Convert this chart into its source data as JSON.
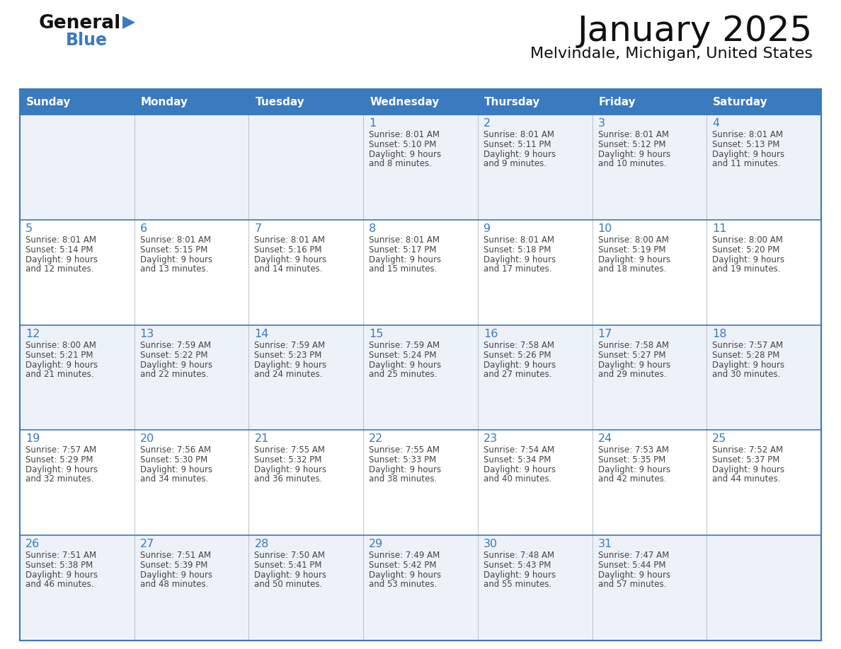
{
  "title": "January 2025",
  "subtitle": "Melvindale, Michigan, United States",
  "days_of_week": [
    "Sunday",
    "Monday",
    "Tuesday",
    "Wednesday",
    "Thursday",
    "Friday",
    "Saturday"
  ],
  "header_bg": "#3a7abf",
  "header_text": "#ffffff",
  "row_bg_odd": "#edf2f8",
  "row_bg_even": "#ffffff",
  "border_color": "#3a7abf",
  "day_number_color": "#3a7abf",
  "cell_text_color": "#444444",
  "calendar_data": [
    [
      null,
      null,
      null,
      {
        "day": 1,
        "sunrise": "8:01 AM",
        "sunset": "5:10 PM",
        "daylight": "9 hours and 8 minutes."
      },
      {
        "day": 2,
        "sunrise": "8:01 AM",
        "sunset": "5:11 PM",
        "daylight": "9 hours and 9 minutes."
      },
      {
        "day": 3,
        "sunrise": "8:01 AM",
        "sunset": "5:12 PM",
        "daylight": "9 hours and 10 minutes."
      },
      {
        "day": 4,
        "sunrise": "8:01 AM",
        "sunset": "5:13 PM",
        "daylight": "9 hours and 11 minutes."
      }
    ],
    [
      {
        "day": 5,
        "sunrise": "8:01 AM",
        "sunset": "5:14 PM",
        "daylight": "9 hours and 12 minutes."
      },
      {
        "day": 6,
        "sunrise": "8:01 AM",
        "sunset": "5:15 PM",
        "daylight": "9 hours and 13 minutes."
      },
      {
        "day": 7,
        "sunrise": "8:01 AM",
        "sunset": "5:16 PM",
        "daylight": "9 hours and 14 minutes."
      },
      {
        "day": 8,
        "sunrise": "8:01 AM",
        "sunset": "5:17 PM",
        "daylight": "9 hours and 15 minutes."
      },
      {
        "day": 9,
        "sunrise": "8:01 AM",
        "sunset": "5:18 PM",
        "daylight": "9 hours and 17 minutes."
      },
      {
        "day": 10,
        "sunrise": "8:00 AM",
        "sunset": "5:19 PM",
        "daylight": "9 hours and 18 minutes."
      },
      {
        "day": 11,
        "sunrise": "8:00 AM",
        "sunset": "5:20 PM",
        "daylight": "9 hours and 19 minutes."
      }
    ],
    [
      {
        "day": 12,
        "sunrise": "8:00 AM",
        "sunset": "5:21 PM",
        "daylight": "9 hours and 21 minutes."
      },
      {
        "day": 13,
        "sunrise": "7:59 AM",
        "sunset": "5:22 PM",
        "daylight": "9 hours and 22 minutes."
      },
      {
        "day": 14,
        "sunrise": "7:59 AM",
        "sunset": "5:23 PM",
        "daylight": "9 hours and 24 minutes."
      },
      {
        "day": 15,
        "sunrise": "7:59 AM",
        "sunset": "5:24 PM",
        "daylight": "9 hours and 25 minutes."
      },
      {
        "day": 16,
        "sunrise": "7:58 AM",
        "sunset": "5:26 PM",
        "daylight": "9 hours and 27 minutes."
      },
      {
        "day": 17,
        "sunrise": "7:58 AM",
        "sunset": "5:27 PM",
        "daylight": "9 hours and 29 minutes."
      },
      {
        "day": 18,
        "sunrise": "7:57 AM",
        "sunset": "5:28 PM",
        "daylight": "9 hours and 30 minutes."
      }
    ],
    [
      {
        "day": 19,
        "sunrise": "7:57 AM",
        "sunset": "5:29 PM",
        "daylight": "9 hours and 32 minutes."
      },
      {
        "day": 20,
        "sunrise": "7:56 AM",
        "sunset": "5:30 PM",
        "daylight": "9 hours and 34 minutes."
      },
      {
        "day": 21,
        "sunrise": "7:55 AM",
        "sunset": "5:32 PM",
        "daylight": "9 hours and 36 minutes."
      },
      {
        "day": 22,
        "sunrise": "7:55 AM",
        "sunset": "5:33 PM",
        "daylight": "9 hours and 38 minutes."
      },
      {
        "day": 23,
        "sunrise": "7:54 AM",
        "sunset": "5:34 PM",
        "daylight": "9 hours and 40 minutes."
      },
      {
        "day": 24,
        "sunrise": "7:53 AM",
        "sunset": "5:35 PM",
        "daylight": "9 hours and 42 minutes."
      },
      {
        "day": 25,
        "sunrise": "7:52 AM",
        "sunset": "5:37 PM",
        "daylight": "9 hours and 44 minutes."
      }
    ],
    [
      {
        "day": 26,
        "sunrise": "7:51 AM",
        "sunset": "5:38 PM",
        "daylight": "9 hours and 46 minutes."
      },
      {
        "day": 27,
        "sunrise": "7:51 AM",
        "sunset": "5:39 PM",
        "daylight": "9 hours and 48 minutes."
      },
      {
        "day": 28,
        "sunrise": "7:50 AM",
        "sunset": "5:41 PM",
        "daylight": "9 hours and 50 minutes."
      },
      {
        "day": 29,
        "sunrise": "7:49 AM",
        "sunset": "5:42 PM",
        "daylight": "9 hours and 53 minutes."
      },
      {
        "day": 30,
        "sunrise": "7:48 AM",
        "sunset": "5:43 PM",
        "daylight": "9 hours and 55 minutes."
      },
      {
        "day": 31,
        "sunrise": "7:47 AM",
        "sunset": "5:44 PM",
        "daylight": "9 hours and 57 minutes."
      },
      null
    ]
  ],
  "fig_width": 11.88,
  "fig_height": 9.18,
  "dpi": 100
}
